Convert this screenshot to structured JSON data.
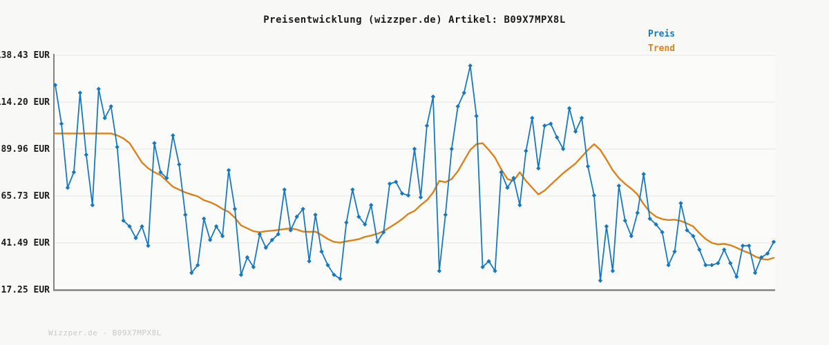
{
  "title": "Preisentwicklung (wizzper.de) Artikel: B09X7MPX8L",
  "footer": "Wizzper.de - B09X7MPX8L",
  "colors": {
    "price": "#1778be",
    "trend": "#d9821b",
    "grid": "#e4e4e4",
    "spine": "#828282",
    "plot_bg": "#fbfbfa",
    "page_bg": "#f8f8f7",
    "label": "#1a1a1a"
  },
  "legend": [
    {
      "label": "Preis",
      "color": "#1778be"
    },
    {
      "label": "Trend",
      "color": "#d9821b"
    }
  ],
  "y_axis": {
    "unit": "EUR",
    "ticks": [
      {
        "label": "138.43 EUR",
        "value": 138.43
      },
      {
        "label": "114.20 EUR",
        "value": 114.2
      },
      {
        "label": "89.96 EUR",
        "value": 89.96
      },
      {
        "label": "65.73 EUR",
        "value": 65.73
      },
      {
        "label": "41.49 EUR",
        "value": 41.49
      },
      {
        "label": "17.25 EUR",
        "value": 17.25
      }
    ]
  },
  "chart_data": {
    "type": "line",
    "title": "Preisentwicklung (wizzper.de) Artikel: B09X7MPX8L",
    "xlabel": "",
    "ylabel": "EUR",
    "ylim": [
      17.25,
      138.43
    ],
    "grid": "horizontal",
    "legend_position": "top-right",
    "x_axis_labels": "none",
    "series": [
      {
        "name": "Preis",
        "color": "#1778be",
        "marker": "diamond",
        "values": [
          123,
          103,
          70,
          78,
          119,
          87,
          61,
          121,
          106,
          112,
          91,
          53,
          50,
          44,
          50,
          40,
          93,
          78,
          75,
          97,
          82,
          56,
          26,
          30,
          54,
          43,
          50,
          45,
          79,
          59,
          25,
          34,
          29,
          46,
          39,
          43,
          46,
          69,
          48,
          55,
          59,
          32,
          56,
          37,
          30,
          25,
          23,
          52,
          69,
          55,
          51,
          61,
          42,
          47,
          72,
          73,
          67,
          66,
          90,
          65,
          102,
          117,
          27,
          56,
          90,
          112,
          119,
          133,
          107,
          29,
          32,
          27,
          78,
          70,
          75,
          61,
          89,
          106,
          80,
          102,
          103,
          96,
          90,
          111,
          99,
          106,
          81,
          66,
          22,
          50,
          27,
          71,
          53,
          45,
          57,
          77,
          54,
          51,
          47,
          30,
          37,
          62,
          48,
          45,
          38,
          30,
          30,
          31,
          38,
          31,
          24,
          40,
          40,
          26,
          34,
          36,
          42
        ]
      },
      {
        "name": "Trend",
        "color": "#d9821b",
        "marker": "none",
        "values": [
          98,
          98,
          98,
          98,
          98,
          98,
          98,
          98,
          98,
          98,
          97,
          95.5,
          93,
          88,
          83,
          80,
          78,
          76.5,
          73.5,
          70.5,
          69,
          67.5,
          66.5,
          65.5,
          63.5,
          62.5,
          61,
          59,
          57.5,
          54.5,
          50.5,
          49,
          47.5,
          47,
          47.5,
          47.8,
          48.2,
          48.6,
          49,
          48.4,
          47.3,
          47.2,
          47.3,
          45.5,
          43.5,
          42,
          41.6,
          42.3,
          42.8,
          43.4,
          44.6,
          45.3,
          46.2,
          47.5,
          49.5,
          51.5,
          53.8,
          56.5,
          58,
          61,
          63.5,
          67.5,
          73.5,
          72.8,
          74.5,
          78.5,
          84,
          89.5,
          92.5,
          93,
          89.5,
          85.5,
          79.5,
          74.5,
          73.5,
          78,
          73.5,
          70,
          66.5,
          68.5,
          71.5,
          74.5,
          77.5,
          80,
          82.5,
          86,
          89.5,
          92.5,
          89.5,
          84.5,
          79,
          75,
          72,
          69.5,
          66.5,
          61.5,
          57.5,
          55,
          53.8,
          53.3,
          53.5,
          52.8,
          51.5,
          50,
          46.5,
          43.5,
          41.5,
          40.7,
          41,
          40.3,
          39,
          37.5,
          36.3,
          34.5,
          33.2,
          32.8,
          33.8
        ]
      }
    ]
  }
}
